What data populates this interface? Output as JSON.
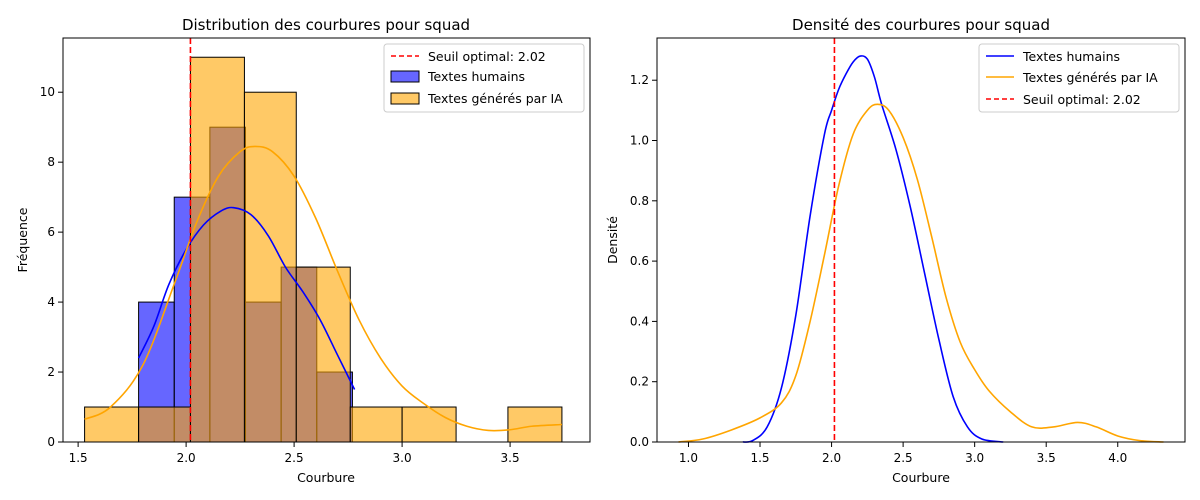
{
  "colors": {
    "human": "#0000ff",
    "ai": "#ffa500",
    "threshold": "#ff0000"
  },
  "chart_data": [
    {
      "type": "bar",
      "title": "Distribution des courbures pour squad",
      "xlabel": "Courbure",
      "ylabel": "Fréquence",
      "xlim": [
        1.43,
        3.87
      ],
      "ylim": [
        0,
        11.55
      ],
      "xticks": [
        1.5,
        2.0,
        2.5,
        3.0,
        3.5
      ],
      "xtick_labels": [
        "1.5",
        "2.0",
        "2.5",
        "3.0",
        "3.5"
      ],
      "yticks": [
        0,
        2,
        4,
        6,
        8,
        10
      ],
      "ytick_labels": [
        "0",
        "2",
        "4",
        "6",
        "8",
        "10"
      ],
      "legend_position": "top-right",
      "legend": [
        "Seuil optimal: 2.02",
        "Textes humains",
        "Textes générés par IA"
      ],
      "threshold": 2.02,
      "series": [
        {
          "name": "Textes humains",
          "color": "#0000ff",
          "bin_edges": [
            1.78,
            1.945,
            2.11,
            2.275,
            2.44,
            2.605,
            2.77
          ],
          "counts": [
            4,
            7,
            9,
            4,
            5,
            2
          ],
          "kde_x": [
            1.78,
            1.85,
            1.92,
            2.0,
            2.08,
            2.16,
            2.22,
            2.3,
            2.38,
            2.46,
            2.54,
            2.62,
            2.7,
            2.78
          ],
          "kde_y": [
            2.4,
            3.3,
            4.5,
            5.5,
            6.2,
            6.6,
            6.7,
            6.5,
            5.9,
            5.0,
            4.3,
            3.5,
            2.5,
            1.5
          ]
        },
        {
          "name": "Textes générés par IA",
          "color": "#ffa500",
          "bin_edges": [
            1.53,
            1.78,
            2.02,
            2.27,
            2.51,
            2.76,
            3.0,
            3.25,
            3.49,
            3.74
          ],
          "counts": [
            1,
            1,
            11,
            10,
            5,
            1,
            1,
            0,
            1
          ],
          "kde_x": [
            1.53,
            1.65,
            1.8,
            1.95,
            2.05,
            2.15,
            2.25,
            2.32,
            2.4,
            2.5,
            2.6,
            2.7,
            2.8,
            2.9,
            3.0,
            3.1,
            3.2,
            3.3,
            3.4,
            3.5,
            3.6,
            3.74
          ],
          "kde_y": [
            0.65,
            1.0,
            2.2,
            4.6,
            6.3,
            7.6,
            8.3,
            8.45,
            8.3,
            7.6,
            6.4,
            4.9,
            3.5,
            2.4,
            1.6,
            1.1,
            0.7,
            0.45,
            0.33,
            0.35,
            0.45,
            0.5
          ]
        }
      ]
    },
    {
      "type": "line",
      "title": "Densité des courbures pour squad",
      "xlabel": "Courbure",
      "ylabel": "Densité",
      "xlim": [
        0.78,
        4.47
      ],
      "ylim": [
        0,
        1.34
      ],
      "xticks": [
        1.0,
        1.5,
        2.0,
        2.5,
        3.0,
        3.5,
        4.0
      ],
      "xtick_labels": [
        "1.0",
        "1.5",
        "2.0",
        "2.5",
        "3.0",
        "3.5",
        "4.0"
      ],
      "yticks": [
        0.0,
        0.2,
        0.4,
        0.6,
        0.8,
        1.0,
        1.2
      ],
      "ytick_labels": [
        "0.0",
        "0.2",
        "0.4",
        "0.6",
        "0.8",
        "1.0",
        "1.2"
      ],
      "legend_position": "top-right",
      "legend": [
        "Textes humains",
        "Textes générés par IA",
        "Seuil optimal: 2.02"
      ],
      "threshold": 2.02,
      "series": [
        {
          "name": "Textes humains",
          "color": "#0000ff",
          "x": [
            1.38,
            1.45,
            1.55,
            1.65,
            1.75,
            1.85,
            1.95,
            2.0,
            2.05,
            2.1,
            2.15,
            2.2,
            2.25,
            2.3,
            2.35,
            2.45,
            2.55,
            2.65,
            2.75,
            2.85,
            2.95,
            3.05,
            3.2
          ],
          "y": [
            0.0,
            0.005,
            0.05,
            0.18,
            0.42,
            0.75,
            1.02,
            1.1,
            1.17,
            1.22,
            1.26,
            1.28,
            1.27,
            1.21,
            1.12,
            0.97,
            0.78,
            0.56,
            0.34,
            0.15,
            0.05,
            0.01,
            0.0
          ]
        },
        {
          "name": "Textes générés par IA",
          "color": "#ffa500",
          "x": [
            0.93,
            1.1,
            1.3,
            1.5,
            1.65,
            1.75,
            1.85,
            1.95,
            2.05,
            2.15,
            2.25,
            2.32,
            2.4,
            2.5,
            2.6,
            2.7,
            2.8,
            2.9,
            3.0,
            3.1,
            3.25,
            3.4,
            3.55,
            3.72,
            3.85,
            4.0,
            4.15,
            4.32
          ],
          "y": [
            0.0,
            0.01,
            0.04,
            0.08,
            0.13,
            0.22,
            0.4,
            0.62,
            0.85,
            1.02,
            1.1,
            1.12,
            1.1,
            1.01,
            0.87,
            0.68,
            0.48,
            0.33,
            0.24,
            0.17,
            0.1,
            0.05,
            0.05,
            0.065,
            0.05,
            0.02,
            0.005,
            0.0
          ]
        }
      ]
    }
  ]
}
